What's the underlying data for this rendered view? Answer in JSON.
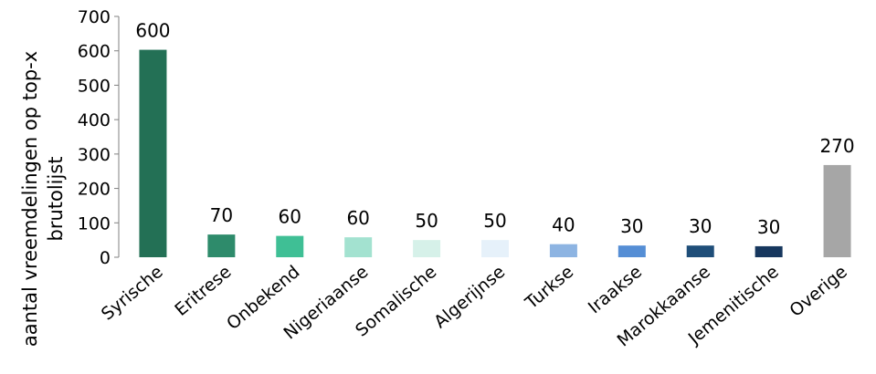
{
  "chart_data": {
    "type": "bar",
    "title": "",
    "xlabel": "",
    "ylabel_lines": [
      "aantal vreemdelingen op top-x",
      "brutolijst"
    ],
    "ylim": [
      0,
      700
    ],
    "yticks": [
      0,
      100,
      200,
      300,
      400,
      500,
      600,
      700
    ],
    "grid": false,
    "categories": [
      "Syrische",
      "Eritrese",
      "Onbekend",
      "Nigeriaanse",
      "Somalische",
      "Algerijnse",
      "Turkse",
      "Iraakse",
      "Marokkaanse",
      "Jemenitische",
      "Overige"
    ],
    "values": [
      603,
      66,
      62,
      58,
      50,
      50,
      38,
      34,
      34,
      32,
      268
    ],
    "data_labels": [
      "600",
      "70",
      "60",
      "60",
      "50",
      "50",
      "40",
      "30",
      "30",
      "30",
      "270"
    ],
    "colors": [
      "#237055",
      "#2e8b6b",
      "#3fbf95",
      "#a3e2d0",
      "#d6f1e9",
      "#e6f1fa",
      "#8db4e2",
      "#558ed5",
      "#1f4e79",
      "#17375e",
      "#a6a6a6"
    ]
  }
}
